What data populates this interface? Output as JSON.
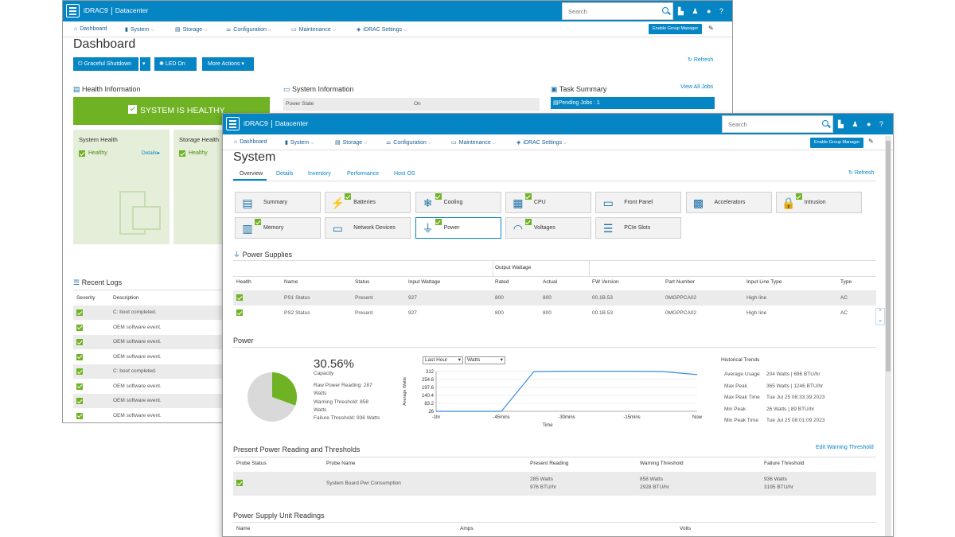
{
  "back": {
    "brand": "iDRAC9",
    "datacenter": "Datacenter",
    "search_placeholder": "Search",
    "menu": [
      "Dashboard",
      "System",
      "Storage",
      "Configuration",
      "Maintenance",
      "iDRAC Settings"
    ],
    "enable_group_manager": "Enable Group Manager",
    "title": "Dashboard",
    "buttons": {
      "graceful_shutdown": "Graceful Shutdown",
      "led_on": "LED On",
      "more_actions": "More Actions"
    },
    "refresh": "Refresh",
    "health": {
      "heading": "Health Information",
      "status": "SYSTEM IS HEALTHY",
      "system_health": "System Health",
      "system_value": "Healthy",
      "details": "Details",
      "storage_health": "Storage Health",
      "storage_value": "Healthy"
    },
    "sysinfo": {
      "heading": "System Information",
      "power_state_label": "Power State",
      "power_state_value": "On"
    },
    "tasks": {
      "heading": "Task Summary",
      "view_all": "View All Jobs",
      "pending": "Pending Jobs : 1"
    },
    "logs": {
      "heading": "Recent Logs",
      "col_severity": "Severity",
      "col_description": "Description",
      "rows": [
        "C: boot completed.",
        "OEM software event.",
        "OEM software event.",
        "OEM software event.",
        "C: boot completed.",
        "OEM software event.",
        "OEM software event.",
        "OEM software event."
      ]
    }
  },
  "front": {
    "brand": "iDRAC9",
    "datacenter": "Datacenter",
    "search_placeholder": "Search",
    "menu": [
      "Dashboard",
      "System",
      "Storage",
      "Configuration",
      "Maintenance",
      "iDRAC Settings"
    ],
    "enable_group_manager": "Enable Group Manager",
    "title": "System",
    "tabs": [
      "Overview",
      "Details",
      "Inventory",
      "Performance",
      "Host OS"
    ],
    "refresh": "Refresh",
    "tiles": [
      {
        "label": "Summary",
        "check": false
      },
      {
        "label": "Batteries",
        "check": true
      },
      {
        "label": "Cooling",
        "check": true
      },
      {
        "label": "CPU",
        "check": true
      },
      {
        "label": "Front Panel",
        "check": false
      },
      {
        "label": "Accelerators",
        "check": false
      },
      {
        "label": "Intrusion",
        "check": true
      },
      {
        "label": "Memory",
        "check": true
      },
      {
        "label": "Network Devices",
        "check": false
      },
      {
        "label": "Power",
        "check": true
      },
      {
        "label": "Voltages",
        "check": true
      },
      {
        "label": "PCIe Slots",
        "check": false
      }
    ],
    "psu": {
      "heading": "Power Supplies",
      "output_wattage": "Output Wattage",
      "columns": [
        "Health",
        "Name",
        "Status",
        "Input Wattage",
        "Rated",
        "Actual",
        "FW Version",
        "Part Number",
        "Input Line Type",
        "Type"
      ],
      "rows": [
        [
          "",
          "PS1 Status",
          "Present",
          "927",
          "800",
          "800",
          "00.1B.53",
          "0MGPPCA02",
          "High line",
          "AC"
        ],
        [
          "",
          "PS2 Status",
          "Present",
          "927",
          "800",
          "800",
          "00.1B.53",
          "0MGPPCA02",
          "High line",
          "AC"
        ]
      ]
    },
    "power": {
      "heading": "Power",
      "capacity_pct": "30.56%",
      "capacity_label": "Capacity",
      "raw_reading_1": "Raw Power Reading: 287",
      "raw_reading_2": "Watts",
      "warning_1": "Warning Threshold: 858",
      "warning_2": "Watts",
      "failure": "Failure Threshold: 936 Watts",
      "select_range": "Last Hour",
      "select_unit": "Watts",
      "chart_ylabel": "Average Watts",
      "chart_xlabel": "Time",
      "historical_heading": "Historical Trends",
      "historical": [
        {
          "label": "Average Usage",
          "value": "204 Watts | 696 BTU/hr"
        },
        {
          "label": "Max Peak",
          "value": "365 Watts | 1246 BTU/hr"
        },
        {
          "label": "Max Peak Time",
          "value": "Tue Jul 25 08:33:39 2023"
        },
        {
          "label": "Min Peak",
          "value": "26 Watts | 89 BTU/hr"
        },
        {
          "label": "Min Peak Time",
          "value": "Tue Jul 25 08:01:09 2023"
        }
      ]
    },
    "thresholds": {
      "heading": "Present Power Reading and Thresholds",
      "edit_link": "Edit Warning Threshold",
      "columns": [
        "Probe Status",
        "Probe Name",
        "Present Reading",
        "Warning Threshold",
        "Failure Threshold"
      ],
      "row": {
        "probe_name": "System Board Pwr Consumption",
        "present_1": "285 Watts",
        "present_2": "976 BTU/hr",
        "warning_1": "858 Watts",
        "warning_2": "2928 BTU/hr",
        "failure_1": "936 Watts",
        "failure_2": "3195 BTU/hr"
      }
    },
    "psu_readings": {
      "heading": "Power Supply Unit Readings",
      "columns": [
        "Name",
        "Amps",
        "Volts"
      ]
    }
  },
  "chart_data": {
    "type": "line",
    "ylabel": "Average Watts",
    "xlabel": "Time",
    "x_ticks": [
      "-1hr",
      "-45mins",
      "-30mins",
      "-15mins",
      "Now"
    ],
    "y_ticks": [
      26,
      83.2,
      140.4,
      197.6,
      254.8,
      312
    ],
    "ylim": [
      26,
      312
    ],
    "series": [
      {
        "points": [
          {
            "x": -60,
            "y": 26
          },
          {
            "x": -45,
            "y": 26
          },
          {
            "x": -37.5,
            "y": 312
          },
          {
            "x": -30,
            "y": 314
          },
          {
            "x": -15,
            "y": 314
          },
          {
            "x": -8,
            "y": 312
          },
          {
            "x": 0,
            "y": 290
          }
        ]
      }
    ],
    "pie": {
      "used_pct": 30.56,
      "colors": [
        "#6fb324",
        "#d9d9d9"
      ]
    },
    "colors": {
      "line": "#3b8ede",
      "grid": "#e0e0e0"
    }
  }
}
